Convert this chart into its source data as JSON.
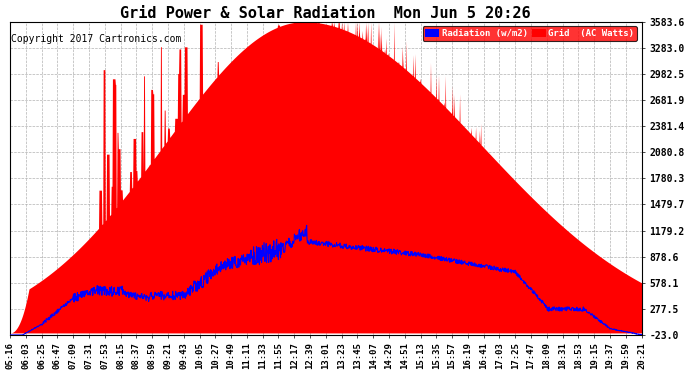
{
  "title": "Grid Power & Solar Radiation  Mon Jun 5 20:26",
  "copyright": "Copyright 2017 Cartronics.com",
  "yticks": [
    -23.0,
    277.5,
    578.1,
    878.6,
    1179.2,
    1479.7,
    1780.3,
    2080.8,
    2381.4,
    2681.9,
    2982.5,
    3283.0,
    3583.6
  ],
  "ylim": [
    -23.0,
    3583.6
  ],
  "xtick_labels": [
    "05:16",
    "06:03",
    "06:25",
    "06:47",
    "07:09",
    "07:31",
    "07:53",
    "08:15",
    "08:37",
    "08:59",
    "09:21",
    "09:43",
    "10:05",
    "10:27",
    "10:49",
    "11:11",
    "11:33",
    "11:55",
    "12:17",
    "12:39",
    "13:01",
    "13:23",
    "13:45",
    "14:07",
    "14:29",
    "14:51",
    "15:13",
    "15:35",
    "15:57",
    "16:19",
    "16:41",
    "17:03",
    "17:25",
    "17:47",
    "18:09",
    "18:31",
    "18:53",
    "19:15",
    "19:37",
    "19:59",
    "20:21"
  ],
  "legend_radiation_label": "Radiation (w/m2)",
  "legend_grid_label": "Grid  (AC Watts)",
  "legend_radiation_color": "#0000ff",
  "legend_grid_color": "#ff0000",
  "bg_color": "#ffffff",
  "plot_bg_color": "#ffffff",
  "grid_color": "#aaaaaa",
  "title_fontsize": 11,
  "copyright_fontsize": 7,
  "tick_fontsize": 6.5,
  "ytick_fontsize": 7
}
